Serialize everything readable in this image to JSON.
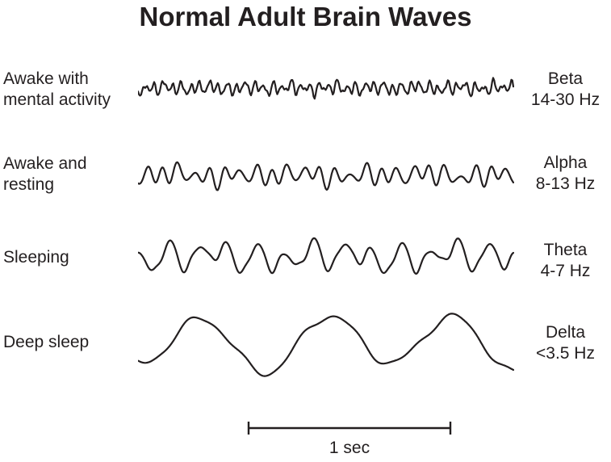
{
  "title": "Normal Adult Brain Waves",
  "ink_color": "#231f20",
  "background_color": "#ffffff",
  "rows": [
    {
      "state_line1": "Awake with",
      "state_line2": "mental activity",
      "band": "Beta",
      "freq": "14-30 Hz",
      "wave": {
        "amplitude": 9,
        "seed": 11,
        "components": [
          [
            41,
            1
          ],
          [
            24,
            0.5
          ],
          [
            60,
            0.45
          ],
          [
            9,
            0.25
          ],
          [
            100,
            0.2
          ]
        ]
      }
    },
    {
      "state_line1": "Awake and",
      "state_line2": "resting",
      "band": "Alpha",
      "freq": "8-13 Hz",
      "wave": {
        "amplitude": 13,
        "seed": 5,
        "components": [
          [
            24,
            1
          ],
          [
            14,
            0.45
          ],
          [
            31,
            0.35
          ],
          [
            6,
            0.25
          ],
          [
            3,
            0.15
          ]
        ]
      }
    },
    {
      "state_line1": "Sleeping",
      "state_line2": "",
      "band": "Theta",
      "freq": "4-7 Hz",
      "wave": {
        "amplitude": 19,
        "seed": 8,
        "components": [
          [
            13,
            1
          ],
          [
            8,
            0.5
          ],
          [
            21,
            0.25
          ],
          [
            3,
            0.3
          ],
          [
            34,
            0.07
          ]
        ]
      }
    },
    {
      "state_line1": "Deep sleep",
      "state_line2": "",
      "band": "Delta",
      "freq": "<3.5 Hz",
      "wave": {
        "amplitude": 29,
        "seed": 2,
        "components": [
          [
            3,
            1
          ],
          [
            1.4,
            0.2
          ],
          [
            7,
            0.12
          ],
          [
            13,
            0.05
          ]
        ]
      }
    }
  ],
  "scale_bar": {
    "label": "1 sec"
  }
}
